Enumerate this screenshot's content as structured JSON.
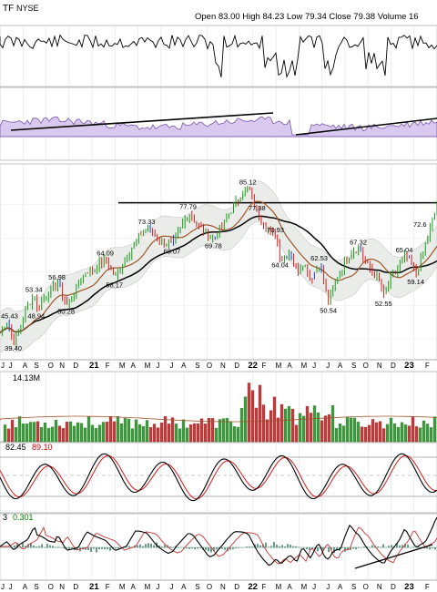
{
  "header": {
    "symbol": "TF",
    "exchange": "NYSE",
    "ohlc": "Open 83.00 High 84.23 Low 79.34 Close 79.38 Volume 16"
  },
  "chart_data": {
    "type": "stock_chart",
    "price_panel": {
      "annotations": [
        {
          "label": "45.43",
          "time": 0.3
        },
        {
          "label": "39.40",
          "time": 0.6
        },
        {
          "label": "53.34",
          "time": 1.5
        },
        {
          "label": "48.94",
          "time": 1.6
        },
        {
          "label": "56.98",
          "time": 2.5
        },
        {
          "label": "50.28",
          "time": 2.9
        },
        {
          "label": "64.09",
          "time": 4.6
        },
        {
          "label": "58.17",
          "time": 5.0
        },
        {
          "label": "73.33",
          "time": 6.4
        },
        {
          "label": "68.07",
          "time": 7.5
        },
        {
          "label": "77.79",
          "time": 8.2
        },
        {
          "label": "69.78",
          "time": 9.3
        },
        {
          "label": "85.12",
          "time": 10.8
        },
        {
          "label": "77.38",
          "time": 11.2
        },
        {
          "label": "70.93",
          "time": 12.0
        },
        {
          "label": "64.04",
          "time": 12.2
        },
        {
          "label": "62.53",
          "time": 13.9
        },
        {
          "label": "50.54",
          "time": 14.3
        },
        {
          "label": "67.32",
          "time": 15.6
        },
        {
          "label": "65.04",
          "time": 17.6
        },
        {
          "label": "52.55",
          "time": 16.7
        },
        {
          "label": "59.14",
          "time": 18.1
        },
        {
          "label": "72.6",
          "time": 18.7
        }
      ],
      "price_path": [
        [
          0.0,
          42
        ],
        [
          0.3,
          45.4
        ],
        [
          0.6,
          39.4
        ],
        [
          0.9,
          44
        ],
        [
          1.2,
          50
        ],
        [
          1.5,
          53.3
        ],
        [
          1.6,
          48.9
        ],
        [
          2.0,
          53
        ],
        [
          2.5,
          57
        ],
        [
          2.9,
          50.3
        ],
        [
          3.3,
          55
        ],
        [
          3.7,
          60
        ],
        [
          4.1,
          61
        ],
        [
          4.6,
          64.1
        ],
        [
          5.0,
          58.2
        ],
        [
          5.4,
          63
        ],
        [
          5.8,
          68
        ],
        [
          6.1,
          71
        ],
        [
          6.4,
          73.3
        ],
        [
          6.8,
          70
        ],
        [
          7.1,
          69
        ],
        [
          7.5,
          68.1
        ],
        [
          7.8,
          72
        ],
        [
          8.2,
          77.8
        ],
        [
          8.6,
          74
        ],
        [
          9.0,
          71
        ],
        [
          9.3,
          69.8
        ],
        [
          9.7,
          74
        ],
        [
          10.1,
          79
        ],
        [
          10.5,
          83
        ],
        [
          10.8,
          85.1
        ],
        [
          11.2,
          77.4
        ],
        [
          11.5,
          74
        ],
        [
          11.8,
          71
        ],
        [
          12.0,
          70.9
        ],
        [
          12.2,
          64
        ],
        [
          12.6,
          66
        ],
        [
          12.9,
          60
        ],
        [
          13.2,
          63
        ],
        [
          13.5,
          58
        ],
        [
          13.9,
          62.5
        ],
        [
          14.1,
          56
        ],
        [
          14.3,
          50.5
        ],
        [
          14.6,
          58
        ],
        [
          15.0,
          63
        ],
        [
          15.3,
          66
        ],
        [
          15.6,
          67.3
        ],
        [
          15.9,
          63
        ],
        [
          16.2,
          60
        ],
        [
          16.5,
          57
        ],
        [
          16.7,
          52.6
        ],
        [
          17.0,
          58
        ],
        [
          17.3,
          61
        ],
        [
          17.6,
          65
        ],
        [
          17.9,
          62
        ],
        [
          18.1,
          59.1
        ],
        [
          18.4,
          66
        ],
        [
          18.7,
          72.6
        ],
        [
          19.0,
          80
        ]
      ],
      "resistance_level": 80.5
    },
    "time_axis": {
      "labels": [
        "J",
        "J",
        "A",
        "S",
        "O",
        "N",
        "D",
        "21",
        "F",
        "M",
        "A",
        "M",
        "J",
        "J",
        "A",
        "S",
        "O",
        "N",
        "D",
        "22",
        "F",
        "M",
        "A",
        "M",
        "J",
        "J",
        "A",
        "S",
        "O",
        "N",
        "D",
        "23",
        "F"
      ],
      "positions": [
        0.0,
        0.5,
        1.1,
        1.6,
        2.2,
        2.7,
        3.3,
        4.0,
        4.7,
        5.3,
        5.8,
        6.4,
        6.9,
        7.5,
        8.0,
        8.6,
        9.1,
        9.7,
        10.3,
        10.9,
        11.5,
        12.1,
        12.6,
        13.2,
        13.7,
        14.3,
        14.8,
        15.4,
        15.9,
        16.5,
        17.1,
        17.7,
        18.6
      ],
      "bold": [
        "21",
        "22",
        "23"
      ]
    },
    "volume_panel": {
      "label": "14.13M"
    },
    "stochastic_panel": {
      "labels": [
        "82.45",
        "89.10"
      ]
    },
    "macd_panel": {
      "labels": [
        "3",
        "0.301"
      ]
    }
  }
}
